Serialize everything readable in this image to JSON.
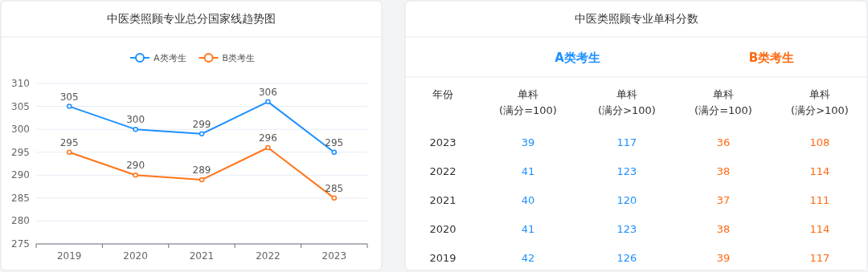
{
  "chart_data": [
    {
      "type": "line",
      "title": "中医类照顾专业总分国家线趋势图",
      "categories": [
        "2019",
        "2020",
        "2021",
        "2022",
        "2023"
      ],
      "series": [
        {
          "name": "A类考生",
          "color": "#1e90ff",
          "values": [
            305,
            300,
            299,
            306,
            295
          ]
        },
        {
          "name": "B类考生",
          "color": "#ff7518",
          "values": [
            295,
            290,
            289,
            296,
            285
          ]
        }
      ],
      "ylim": [
        275,
        310
      ],
      "yticks": [
        275,
        280,
        285,
        290,
        295,
        300,
        305,
        310
      ],
      "grid": "y",
      "legend": "top",
      "marker": "circle",
      "data_labels": true
    },
    {
      "type": "heatmap",
      "title": "中医类照顾专业单科分数",
      "ylabel": "年份",
      "annotations": [
        "A类考生",
        "B类考生"
      ],
      "colors": [
        "#1e90ff",
        "#1e90ff",
        "#ff6a13",
        "#ff6a13"
      ],
      "data_labels": true,
      "categories": [
        "单科(满分=100)",
        "单科(满分>100)",
        "单科(满分=100)",
        "单科(满分>100)"
      ],
      "y_categories": [
        "2023",
        "2022",
        "2021",
        "2020",
        "2019"
      ],
      "cells": [
        [
          39,
          117,
          36,
          108
        ],
        [
          41,
          123,
          38,
          114
        ],
        [
          40,
          120,
          37,
          111
        ],
        [
          41,
          123,
          38,
          114
        ],
        [
          42,
          126,
          39,
          117
        ]
      ]
    }
  ]
}
